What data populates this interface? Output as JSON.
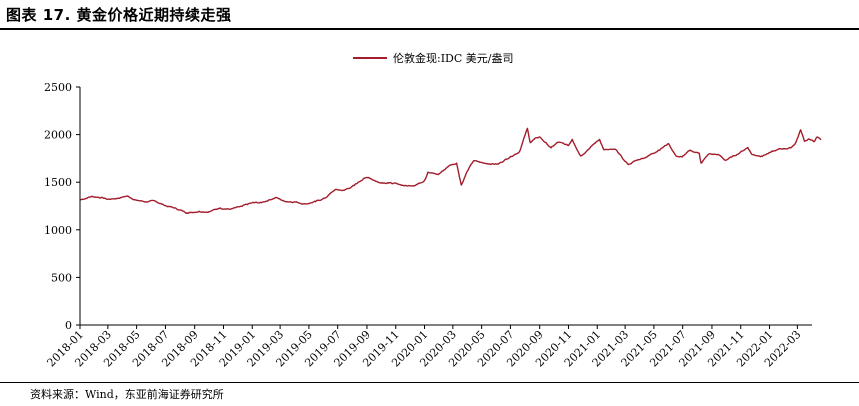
{
  "figure": {
    "title": "图表 17. 黄金价格近期持续走强",
    "source": "资料来源：Wind，东亚前海证券研究所"
  },
  "chart_data": {
    "type": "line",
    "title": "",
    "xlabel": "",
    "ylabel": "",
    "ylim": [
      0,
      2500
    ],
    "yticks": [
      0,
      500,
      1000,
      1500,
      2000,
      2500
    ],
    "xrange": [
      "2018-01",
      "2022-04"
    ],
    "xtick_labels": [
      "2018-01",
      "2018-03",
      "2018-05",
      "2018-07",
      "2018-09",
      "2018-11",
      "2019-01",
      "2019-03",
      "2019-05",
      "2019-07",
      "2019-09",
      "2019-11",
      "2020-01",
      "2020-03",
      "2020-05",
      "2020-07",
      "2020-09",
      "2020-11",
      "2021-01",
      "2021-03",
      "2021-05",
      "2021-07",
      "2021-09",
      "2021-11",
      "2022-01",
      "2022-03"
    ],
    "grid": false,
    "legend": "top-center",
    "color": "#a31d2c",
    "series": [
      {
        "name": "伦敦金现:IDC 美元/盎司",
        "points": [
          [
            "2018-01-02",
            1315
          ],
          [
            "2018-01-25",
            1350
          ],
          [
            "2018-02-15",
            1340
          ],
          [
            "2018-03-01",
            1320
          ],
          [
            "2018-03-20",
            1330
          ],
          [
            "2018-04-11",
            1355
          ],
          [
            "2018-05-01",
            1310
          ],
          [
            "2018-05-20",
            1295
          ],
          [
            "2018-06-10",
            1300
          ],
          [
            "2018-06-30",
            1255
          ],
          [
            "2018-07-20",
            1230
          ],
          [
            "2018-08-16",
            1178
          ],
          [
            "2018-09-10",
            1195
          ],
          [
            "2018-10-01",
            1190
          ],
          [
            "2018-10-25",
            1230
          ],
          [
            "2018-11-15",
            1215
          ],
          [
            "2018-12-10",
            1245
          ],
          [
            "2018-12-31",
            1282
          ],
          [
            "2019-01-20",
            1285
          ],
          [
            "2019-02-20",
            1340
          ],
          [
            "2019-03-10",
            1300
          ],
          [
            "2019-04-01",
            1295
          ],
          [
            "2019-04-23",
            1272
          ],
          [
            "2019-05-15",
            1295
          ],
          [
            "2019-06-05",
            1335
          ],
          [
            "2019-06-25",
            1420
          ],
          [
            "2019-07-15",
            1415
          ],
          [
            "2019-08-05",
            1465
          ],
          [
            "2019-08-25",
            1540
          ],
          [
            "2019-09-05",
            1550
          ],
          [
            "2019-09-25",
            1500
          ],
          [
            "2019-10-15",
            1495
          ],
          [
            "2019-11-05",
            1480
          ],
          [
            "2019-11-25",
            1460
          ],
          [
            "2019-12-15",
            1475
          ],
          [
            "2020-01-01",
            1520
          ],
          [
            "2020-01-08",
            1605
          ],
          [
            "2020-01-30",
            1580
          ],
          [
            "2020-02-24",
            1680
          ],
          [
            "2020-03-09",
            1700
          ],
          [
            "2020-03-19",
            1470
          ],
          [
            "2020-03-31",
            1610
          ],
          [
            "2020-04-14",
            1725
          ],
          [
            "2020-05-05",
            1700
          ],
          [
            "2020-06-05",
            1690
          ],
          [
            "2020-07-01",
            1770
          ],
          [
            "2020-07-20",
            1820
          ],
          [
            "2020-08-06",
            2065
          ],
          [
            "2020-08-12",
            1915
          ],
          [
            "2020-08-20",
            1950
          ],
          [
            "2020-09-01",
            1975
          ],
          [
            "2020-09-25",
            1860
          ],
          [
            "2020-10-10",
            1920
          ],
          [
            "2020-11-01",
            1885
          ],
          [
            "2020-11-09",
            1950
          ],
          [
            "2020-11-27",
            1775
          ],
          [
            "2020-12-20",
            1880
          ],
          [
            "2021-01-06",
            1950
          ],
          [
            "2021-01-15",
            1840
          ],
          [
            "2021-02-10",
            1840
          ],
          [
            "2021-02-26",
            1735
          ],
          [
            "2021-03-08",
            1685
          ],
          [
            "2021-03-25",
            1730
          ],
          [
            "2021-04-15",
            1765
          ],
          [
            "2021-05-10",
            1835
          ],
          [
            "2021-06-01",
            1905
          ],
          [
            "2021-06-17",
            1775
          ],
          [
            "2021-06-30",
            1765
          ],
          [
            "2021-07-15",
            1830
          ],
          [
            "2021-08-05",
            1805
          ],
          [
            "2021-08-09",
            1700
          ],
          [
            "2021-08-25",
            1795
          ],
          [
            "2021-09-15",
            1790
          ],
          [
            "2021-09-29",
            1730
          ],
          [
            "2021-10-20",
            1780
          ],
          [
            "2021-11-16",
            1865
          ],
          [
            "2021-11-25",
            1790
          ],
          [
            "2021-12-15",
            1775
          ],
          [
            "2022-01-04",
            1815
          ],
          [
            "2022-01-25",
            1850
          ],
          [
            "2022-02-15",
            1860
          ],
          [
            "2022-02-25",
            1910
          ],
          [
            "2022-03-08",
            2050
          ],
          [
            "2022-03-16",
            1930
          ],
          [
            "2022-03-25",
            1955
          ],
          [
            "2022-04-05",
            1925
          ],
          [
            "2022-04-12",
            1975
          ],
          [
            "2022-04-20",
            1945
          ]
        ]
      }
    ]
  }
}
